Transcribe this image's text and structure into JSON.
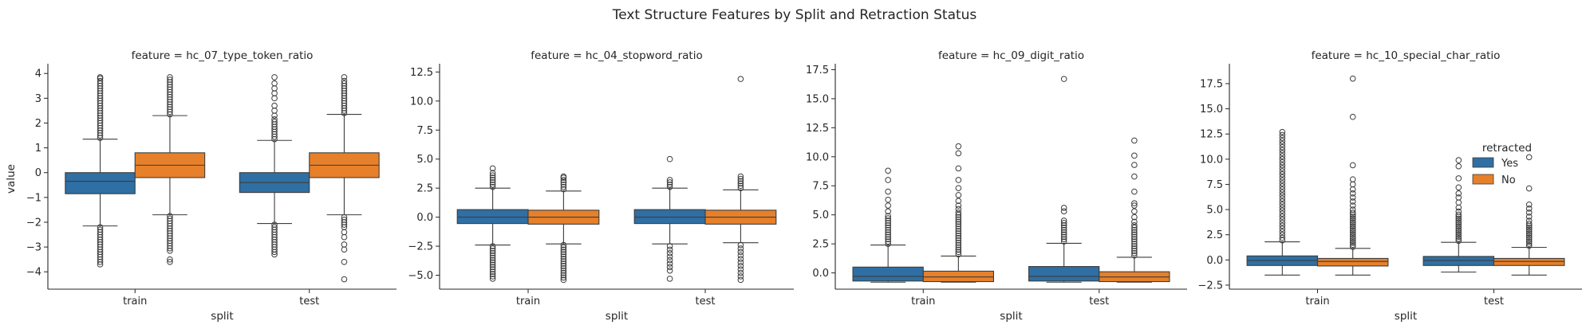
{
  "figure": {
    "title": "Text Structure Features by Split and Retraction Status"
  },
  "legend": {
    "title": "retracted",
    "placement": "center-right",
    "entries": [
      {
        "label": "Yes",
        "color": "#2f6fa3"
      },
      {
        "label": "No",
        "color": "#e6802a"
      }
    ]
  },
  "chart_data": [
    {
      "type": "box",
      "title": "feature = hc_07_type_token_ratio",
      "xlabel": "split",
      "ylabel": "value",
      "categories": [
        "train",
        "test"
      ],
      "ylim": [
        -4.7,
        4.2
      ],
      "yticks": [
        -4,
        -3,
        -2,
        -1,
        0,
        1,
        2,
        3,
        4
      ],
      "ytick_labels": [
        "−4",
        "−3",
        "−2",
        "−1",
        "0",
        "1",
        "2",
        "3",
        "4"
      ],
      "series": [
        {
          "name": "Yes",
          "boxes": [
            {
              "category": "train",
              "whislo": -2.15,
              "q1": -0.85,
              "med": -0.35,
              "q3": 0.0,
              "whishi": 1.35,
              "fliers": [
                -2.2,
                -2.3,
                -2.4,
                -2.5,
                -2.6,
                -2.7,
                -2.8,
                -2.9,
                -3.0,
                -3.1,
                -3.2,
                -3.3,
                -3.4,
                -3.5,
                -3.6,
                -3.7,
                1.4,
                1.5,
                1.6,
                1.7,
                1.8,
                1.9,
                2.0,
                2.1,
                2.2,
                2.3,
                2.4,
                2.5,
                2.6,
                2.7,
                2.8,
                2.9,
                3.0,
                3.1,
                3.2,
                3.3,
                3.4,
                3.5,
                3.6,
                3.7,
                3.8,
                3.85
              ]
            },
            {
              "category": "test",
              "whislo": -2.05,
              "q1": -0.8,
              "med": -0.4,
              "q3": 0.0,
              "whishi": 1.3,
              "fliers": [
                -2.1,
                -2.2,
                -2.3,
                -2.4,
                -2.5,
                -2.6,
                -2.7,
                -2.8,
                -2.9,
                -3.0,
                -3.1,
                -3.2,
                -3.3,
                1.35,
                1.45,
                1.55,
                1.65,
                1.75,
                1.85,
                1.95,
                2.05,
                2.15,
                2.3,
                2.5,
                2.7,
                3.0,
                3.2,
                3.4,
                3.6,
                3.85
              ]
            }
          ]
        },
        {
          "name": "No",
          "boxes": [
            {
              "category": "train",
              "whislo": -1.7,
              "q1": -0.2,
              "med": 0.3,
              "q3": 0.8,
              "whishi": 2.3,
              "fliers": [
                -1.75,
                -1.85,
                -1.95,
                -2.05,
                -2.15,
                -2.25,
                -2.35,
                -2.45,
                -2.55,
                -2.65,
                -2.75,
                -2.85,
                -2.95,
                -3.05,
                -3.15,
                -3.5,
                -3.6,
                2.35,
                2.45,
                2.55,
                2.65,
                2.75,
                2.85,
                2.95,
                3.05,
                3.15,
                3.25,
                3.35,
                3.45,
                3.55,
                3.65,
                3.75,
                3.85
              ]
            },
            {
              "category": "test",
              "whislo": -1.7,
              "q1": -0.2,
              "med": 0.3,
              "q3": 0.8,
              "whishi": 2.35,
              "fliers": [
                -1.8,
                -1.9,
                -2.0,
                -2.1,
                -2.2,
                -2.4,
                -2.6,
                -2.9,
                -3.1,
                -3.6,
                -4.3,
                2.4,
                2.5,
                2.6,
                2.7,
                2.8,
                2.9,
                3.0,
                3.1,
                3.2,
                3.3,
                3.4,
                3.5,
                3.6,
                3.7,
                3.85
              ]
            }
          ]
        }
      ]
    },
    {
      "type": "box",
      "title": "feature = hc_04_stopword_ratio",
      "xlabel": "split",
      "ylabel": "",
      "categories": [
        "train",
        "test"
      ],
      "ylim": [
        -6.2,
        12.8
      ],
      "yticks": [
        -5.0,
        -2.5,
        0.0,
        2.5,
        5.0,
        7.5,
        10.0,
        12.5
      ],
      "ytick_labels": [
        "−5.0",
        "−2.5",
        "0.0",
        "2.5",
        "5.0",
        "7.5",
        "10.0",
        "12.5"
      ],
      "series": [
        {
          "name": "Yes",
          "boxes": [
            {
              "category": "train",
              "whislo": -2.4,
              "q1": -0.55,
              "med": 0.0,
              "q3": 0.65,
              "whishi": 2.5,
              "fliers": [
                -2.5,
                -2.7,
                -2.9,
                -3.1,
                -3.3,
                -3.5,
                -3.7,
                -3.9,
                -4.1,
                -4.3,
                -4.5,
                -4.7,
                -4.9,
                -5.1,
                -5.3,
                2.6,
                2.8,
                3.0,
                3.2,
                3.4,
                3.6,
                3.8,
                4.2
              ]
            },
            {
              "category": "test",
              "whislo": -2.3,
              "q1": -0.55,
              "med": 0.0,
              "q3": 0.65,
              "whishi": 2.5,
              "fliers": [
                -2.5,
                -2.8,
                -3.1,
                -3.4,
                -3.7,
                -4.0,
                -4.3,
                -4.6,
                -5.3,
                2.6,
                2.8,
                3.0,
                3.2,
                5.0
              ]
            }
          ]
        },
        {
          "name": "No",
          "boxes": [
            {
              "category": "train",
              "whislo": -2.3,
              "q1": -0.6,
              "med": 0.0,
              "q3": 0.6,
              "whishi": 2.25,
              "fliers": [
                -2.4,
                -2.6,
                -2.8,
                -3.0,
                -3.2,
                -3.4,
                -3.6,
                -3.8,
                -4.0,
                -4.2,
                -4.4,
                -4.6,
                -4.8,
                -5.0,
                -5.2,
                -5.4,
                2.4,
                2.6,
                2.8,
                3.0,
                3.2,
                3.4,
                3.5
              ]
            },
            {
              "category": "test",
              "whislo": -2.2,
              "q1": -0.6,
              "med": 0.0,
              "q3": 0.6,
              "whishi": 2.35,
              "fliers": [
                -2.4,
                -2.7,
                -3.0,
                -3.3,
                -3.6,
                -3.9,
                -4.2,
                -4.5,
                -4.8,
                -5.1,
                -5.4,
                2.5,
                2.7,
                2.9,
                3.1,
                3.3,
                3.5,
                11.9
              ]
            }
          ]
        }
      ]
    },
    {
      "type": "box",
      "title": "feature = hc_09_digit_ratio",
      "xlabel": "split",
      "ylabel": "",
      "categories": [
        "train",
        "test"
      ],
      "ylim": [
        -1.4,
        17.6
      ],
      "yticks": [
        0.0,
        2.5,
        5.0,
        7.5,
        10.0,
        12.5,
        15.0,
        17.5
      ],
      "ytick_labels": [
        "0.0",
        "2.5",
        "5.0",
        "7.5",
        "10.0",
        "12.5",
        "15.0",
        "17.5"
      ],
      "series": [
        {
          "name": "Yes",
          "boxes": [
            {
              "category": "train",
              "whislo": -0.8,
              "q1": -0.7,
              "med": -0.3,
              "q3": 0.5,
              "whishi": 2.4,
              "fliers": [
                2.5,
                2.7,
                2.9,
                3.1,
                3.3,
                3.5,
                3.7,
                3.9,
                4.1,
                4.3,
                4.5,
                4.7,
                4.9,
                5.3,
                5.8,
                6.3,
                7.0,
                8.0,
                8.8
              ]
            },
            {
              "category": "test",
              "whislo": -0.8,
              "q1": -0.7,
              "med": -0.3,
              "q3": 0.55,
              "whishi": 2.55,
              "fliers": [
                2.7,
                2.9,
                3.1,
                3.3,
                3.5,
                3.7,
                3.9,
                4.1,
                4.3,
                4.5,
                5.3,
                5.6,
                16.7
              ]
            }
          ]
        },
        {
          "name": "No",
          "boxes": [
            {
              "category": "train",
              "whislo": -0.8,
              "q1": -0.75,
              "med": -0.35,
              "q3": 0.15,
              "whishi": 1.45,
              "fliers": [
                1.6,
                1.8,
                2.0,
                2.2,
                2.4,
                2.6,
                2.8,
                3.0,
                3.2,
                3.4,
                3.6,
                3.8,
                4.0,
                4.2,
                4.4,
                4.6,
                4.8,
                5.0,
                5.2,
                5.5,
                5.8,
                6.2,
                6.7,
                7.3,
                8.0,
                9.0,
                10.3,
                10.9
              ]
            },
            {
              "category": "test",
              "whislo": -0.8,
              "q1": -0.75,
              "med": -0.35,
              "q3": 0.1,
              "whishi": 1.35,
              "fliers": [
                1.5,
                1.7,
                1.9,
                2.1,
                2.3,
                2.5,
                2.7,
                2.9,
                3.1,
                3.3,
                3.5,
                3.7,
                3.9,
                4.1,
                4.4,
                4.8,
                5.3,
                5.8,
                6.0,
                7.0,
                8.3,
                9.3,
                10.1,
                11.4
              ]
            }
          ]
        }
      ]
    },
    {
      "type": "box",
      "title": "feature = hc_10_special_char_ratio",
      "xlabel": "split",
      "ylabel": "",
      "categories": [
        "train",
        "test"
      ],
      "ylim": [
        -2.9,
        19.0
      ],
      "yticks": [
        -2.5,
        0.0,
        2.5,
        5.0,
        7.5,
        10.0,
        12.5,
        15.0,
        17.5
      ],
      "ytick_labels": [
        "−2.5",
        "0.0",
        "2.5",
        "5.0",
        "7.5",
        "10.0",
        "12.5",
        "15.0",
        "17.5"
      ],
      "series": [
        {
          "name": "Yes",
          "boxes": [
            {
              "category": "train",
              "whislo": -1.5,
              "q1": -0.55,
              "med": -0.05,
              "q3": 0.4,
              "whishi": 1.8,
              "fliers": [
                1.95,
                2.2,
                2.5,
                2.8,
                3.1,
                3.4,
                3.7,
                4.0,
                4.3,
                4.6,
                4.9,
                5.2,
                5.5,
                5.8,
                6.1,
                6.4,
                6.7,
                7.0,
                7.3,
                7.6,
                7.9,
                8.2,
                8.5,
                8.8,
                9.1,
                9.4,
                9.7,
                10.0,
                10.3,
                10.6,
                10.9,
                11.2,
                11.5,
                11.8,
                12.1,
                12.4,
                12.7
              ]
            },
            {
              "category": "test",
              "whislo": -1.2,
              "q1": -0.55,
              "med": -0.05,
              "q3": 0.35,
              "whishi": 1.75,
              "fliers": [
                1.9,
                2.1,
                2.3,
                2.5,
                2.7,
                2.9,
                3.1,
                3.3,
                3.5,
                3.7,
                3.9,
                4.1,
                4.3,
                4.5,
                4.8,
                5.2,
                5.7,
                6.2,
                6.6,
                7.2,
                8.1,
                9.3,
                9.9
              ]
            }
          ]
        },
        {
          "name": "No",
          "boxes": [
            {
              "category": "train",
              "whislo": -1.5,
              "q1": -0.6,
              "med": -0.15,
              "q3": 0.15,
              "whishi": 1.15,
              "fliers": [
                1.3,
                1.5,
                1.7,
                1.9,
                2.1,
                2.3,
                2.5,
                2.7,
                2.9,
                3.1,
                3.3,
                3.5,
                3.7,
                3.9,
                4.1,
                4.3,
                4.5,
                4.7,
                5.0,
                5.4,
                5.8,
                6.2,
                6.6,
                7.0,
                7.5,
                8.0,
                9.4,
                14.2,
                18.0
              ]
            },
            {
              "category": "test",
              "whislo": -1.5,
              "q1": -0.55,
              "med": -0.15,
              "q3": 0.15,
              "whishi": 1.25,
              "fliers": [
                1.4,
                1.6,
                1.8,
                2.0,
                2.2,
                2.4,
                2.6,
                2.8,
                3.0,
                3.2,
                3.4,
                3.6,
                3.9,
                4.3,
                4.7,
                5.1,
                5.5,
                7.1,
                10.2
              ]
            }
          ]
        }
      ]
    }
  ]
}
